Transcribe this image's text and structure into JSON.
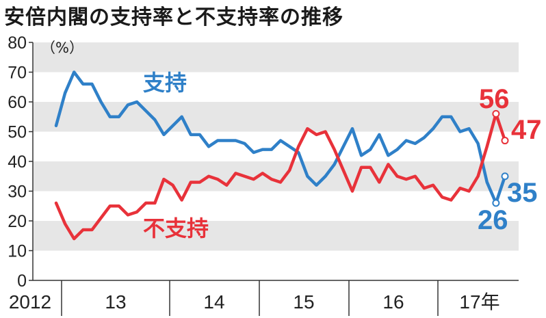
{
  "chart_data": {
    "type": "line",
    "title": "安倍内閣の支持率と不支持率の推移",
    "unit_label": "（%）",
    "ylim": [
      0,
      80
    ],
    "y_ticks": [
      "0",
      "10",
      "20",
      "30",
      "40",
      "50",
      "60",
      "70",
      "80"
    ],
    "x_labels": [
      "2012",
      "13",
      "14",
      "15",
      "16",
      "17年"
    ],
    "grid": "alternating horizontal bands",
    "colors": {
      "support": "#2f80c8",
      "nonsupport": "#e8323a",
      "band": "#e6e6e6",
      "axis": "#333333"
    },
    "series": [
      {
        "key": "support",
        "name": "支持",
        "values": [
          52,
          63,
          70,
          66,
          66,
          60,
          55,
          55,
          59,
          60,
          57,
          54,
          49,
          52,
          55,
          49,
          49,
          45,
          47,
          47,
          47,
          46,
          43,
          44,
          44,
          47,
          45,
          43,
          35,
          32,
          35,
          39,
          45,
          51,
          42,
          44,
          49,
          42,
          44,
          47,
          46,
          48,
          51,
          55,
          55,
          50,
          51,
          46,
          33,
          26,
          35
        ],
        "end_label": "26",
        "end_label_2": "35"
      },
      {
        "key": "nonsupport",
        "name": "不支持",
        "values": [
          26,
          19,
          14,
          17,
          17,
          21,
          25,
          25,
          22,
          23,
          26,
          26,
          34,
          32,
          27,
          33,
          33,
          35,
          34,
          32,
          36,
          35,
          34,
          36,
          34,
          33,
          37,
          45,
          51,
          49,
          50,
          44,
          37,
          30,
          38,
          38,
          33,
          39,
          35,
          34,
          35,
          31,
          32,
          28,
          27,
          31,
          30,
          35,
          45,
          56,
          47
        ],
        "end_label": "56",
        "end_label_2": "47"
      }
    ]
  }
}
